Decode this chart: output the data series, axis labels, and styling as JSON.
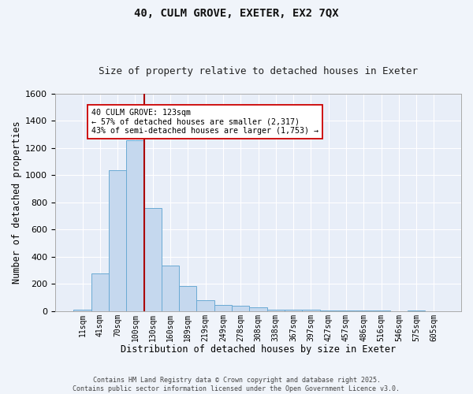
{
  "title1": "40, CULM GROVE, EXETER, EX2 7QX",
  "title2": "Size of property relative to detached houses in Exeter",
  "xlabel": "Distribution of detached houses by size in Exeter",
  "ylabel": "Number of detached properties",
  "bar_labels": [
    "11sqm",
    "41sqm",
    "70sqm",
    "100sqm",
    "130sqm",
    "160sqm",
    "189sqm",
    "219sqm",
    "249sqm",
    "278sqm",
    "308sqm",
    "338sqm",
    "367sqm",
    "397sqm",
    "427sqm",
    "457sqm",
    "486sqm",
    "516sqm",
    "546sqm",
    "575sqm",
    "605sqm"
  ],
  "bar_values": [
    10,
    280,
    1040,
    1260,
    760,
    335,
    185,
    80,
    47,
    37,
    25,
    10,
    10,
    8,
    3,
    3,
    3,
    5,
    0,
    3,
    0
  ],
  "bar_color": "#c5d8ee",
  "bar_edgecolor": "#6aaad4",
  "fig_bg_color": "#f0f4fa",
  "ax_bg_color": "#e8eef8",
  "grid_color": "#ffffff",
  "vline_color": "#aa0000",
  "vline_x_index": 3.5,
  "ylim": [
    0,
    1600
  ],
  "yticks": [
    0,
    200,
    400,
    600,
    800,
    1000,
    1200,
    1400,
    1600
  ],
  "annotation_text": "40 CULM GROVE: 123sqm\n← 57% of detached houses are smaller (2,317)\n43% of semi-detached houses are larger (1,753) →",
  "annotation_box_facecolor": "#ffffff",
  "annotation_box_edgecolor": "#cc0000",
  "footer1": "Contains HM Land Registry data © Crown copyright and database right 2025.",
  "footer2": "Contains public sector information licensed under the Open Government Licence v3.0."
}
